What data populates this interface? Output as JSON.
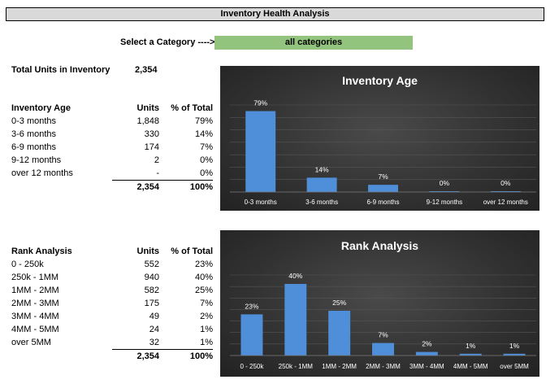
{
  "title": "Inventory Health Analysis",
  "selector": {
    "label": "Select a Category ---->",
    "value": "all categories"
  },
  "total": {
    "label": "Total Units in Inventory",
    "value": "2,354"
  },
  "age_table": {
    "headers": [
      "Inventory Age",
      "Units",
      "% of Total"
    ],
    "rows": [
      {
        "label": "0-3 months",
        "units": "1,848",
        "pct": "79%"
      },
      {
        "label": "3-6 months",
        "units": "330",
        "pct": "14%"
      },
      {
        "label": "6-9 months",
        "units": "174",
        "pct": "7%"
      },
      {
        "label": "9-12 months",
        "units": "2",
        "pct": "0%"
      },
      {
        "label": "over 12 months",
        "units": "-",
        "pct": "0%"
      }
    ],
    "total_units": "2,354",
    "total_pct": "100%"
  },
  "rank_table": {
    "headers": [
      "Rank Analysis",
      "Units",
      "% of Total"
    ],
    "rows": [
      {
        "label": "0 - 250k",
        "units": "552",
        "pct": "23%"
      },
      {
        "label": "250k - 1MM",
        "units": "940",
        "pct": "40%"
      },
      {
        "label": "1MM - 2MM",
        "units": "582",
        "pct": "25%"
      },
      {
        "label": "2MM - 3MM",
        "units": "175",
        "pct": "7%"
      },
      {
        "label": "3MM - 4MM",
        "units": "49",
        "pct": "2%"
      },
      {
        "label": "4MM - 5MM",
        "units": "24",
        "pct": "1%"
      },
      {
        "label": "over 5MM",
        "units": "32",
        "pct": "1%"
      }
    ],
    "total_units": "2,354",
    "total_pct": "100%"
  },
  "colors": {
    "bar": "#4f8fd9",
    "panel": "#333333",
    "selector_bg": "#93c47d",
    "banner_bg": "#d9d9d9"
  },
  "chart_data": [
    {
      "type": "bar",
      "title": "Inventory Age",
      "categories": [
        "0-3 months",
        "3-6 months",
        "6-9 months",
        "9-12 months",
        "over 12 months"
      ],
      "values": [
        79,
        14,
        7,
        0,
        0
      ],
      "data_labels": [
        "79%",
        "14%",
        "7%",
        "0%",
        "0%"
      ],
      "ylim": [
        0,
        85
      ],
      "grid": true
    },
    {
      "type": "bar",
      "title": "Rank Analysis",
      "categories": [
        "0 - 250k",
        "250k - 1MM",
        "1MM - 2MM",
        "2MM - 3MM",
        "3MM - 4MM",
        "4MM - 5MM",
        "over 5MM"
      ],
      "values": [
        23,
        40,
        25,
        7,
        2,
        1,
        1
      ],
      "data_labels": [
        "23%",
        "40%",
        "25%",
        "7%",
        "2%",
        "1%",
        "1%"
      ],
      "ylim": [
        0,
        45
      ],
      "grid": true
    }
  ]
}
